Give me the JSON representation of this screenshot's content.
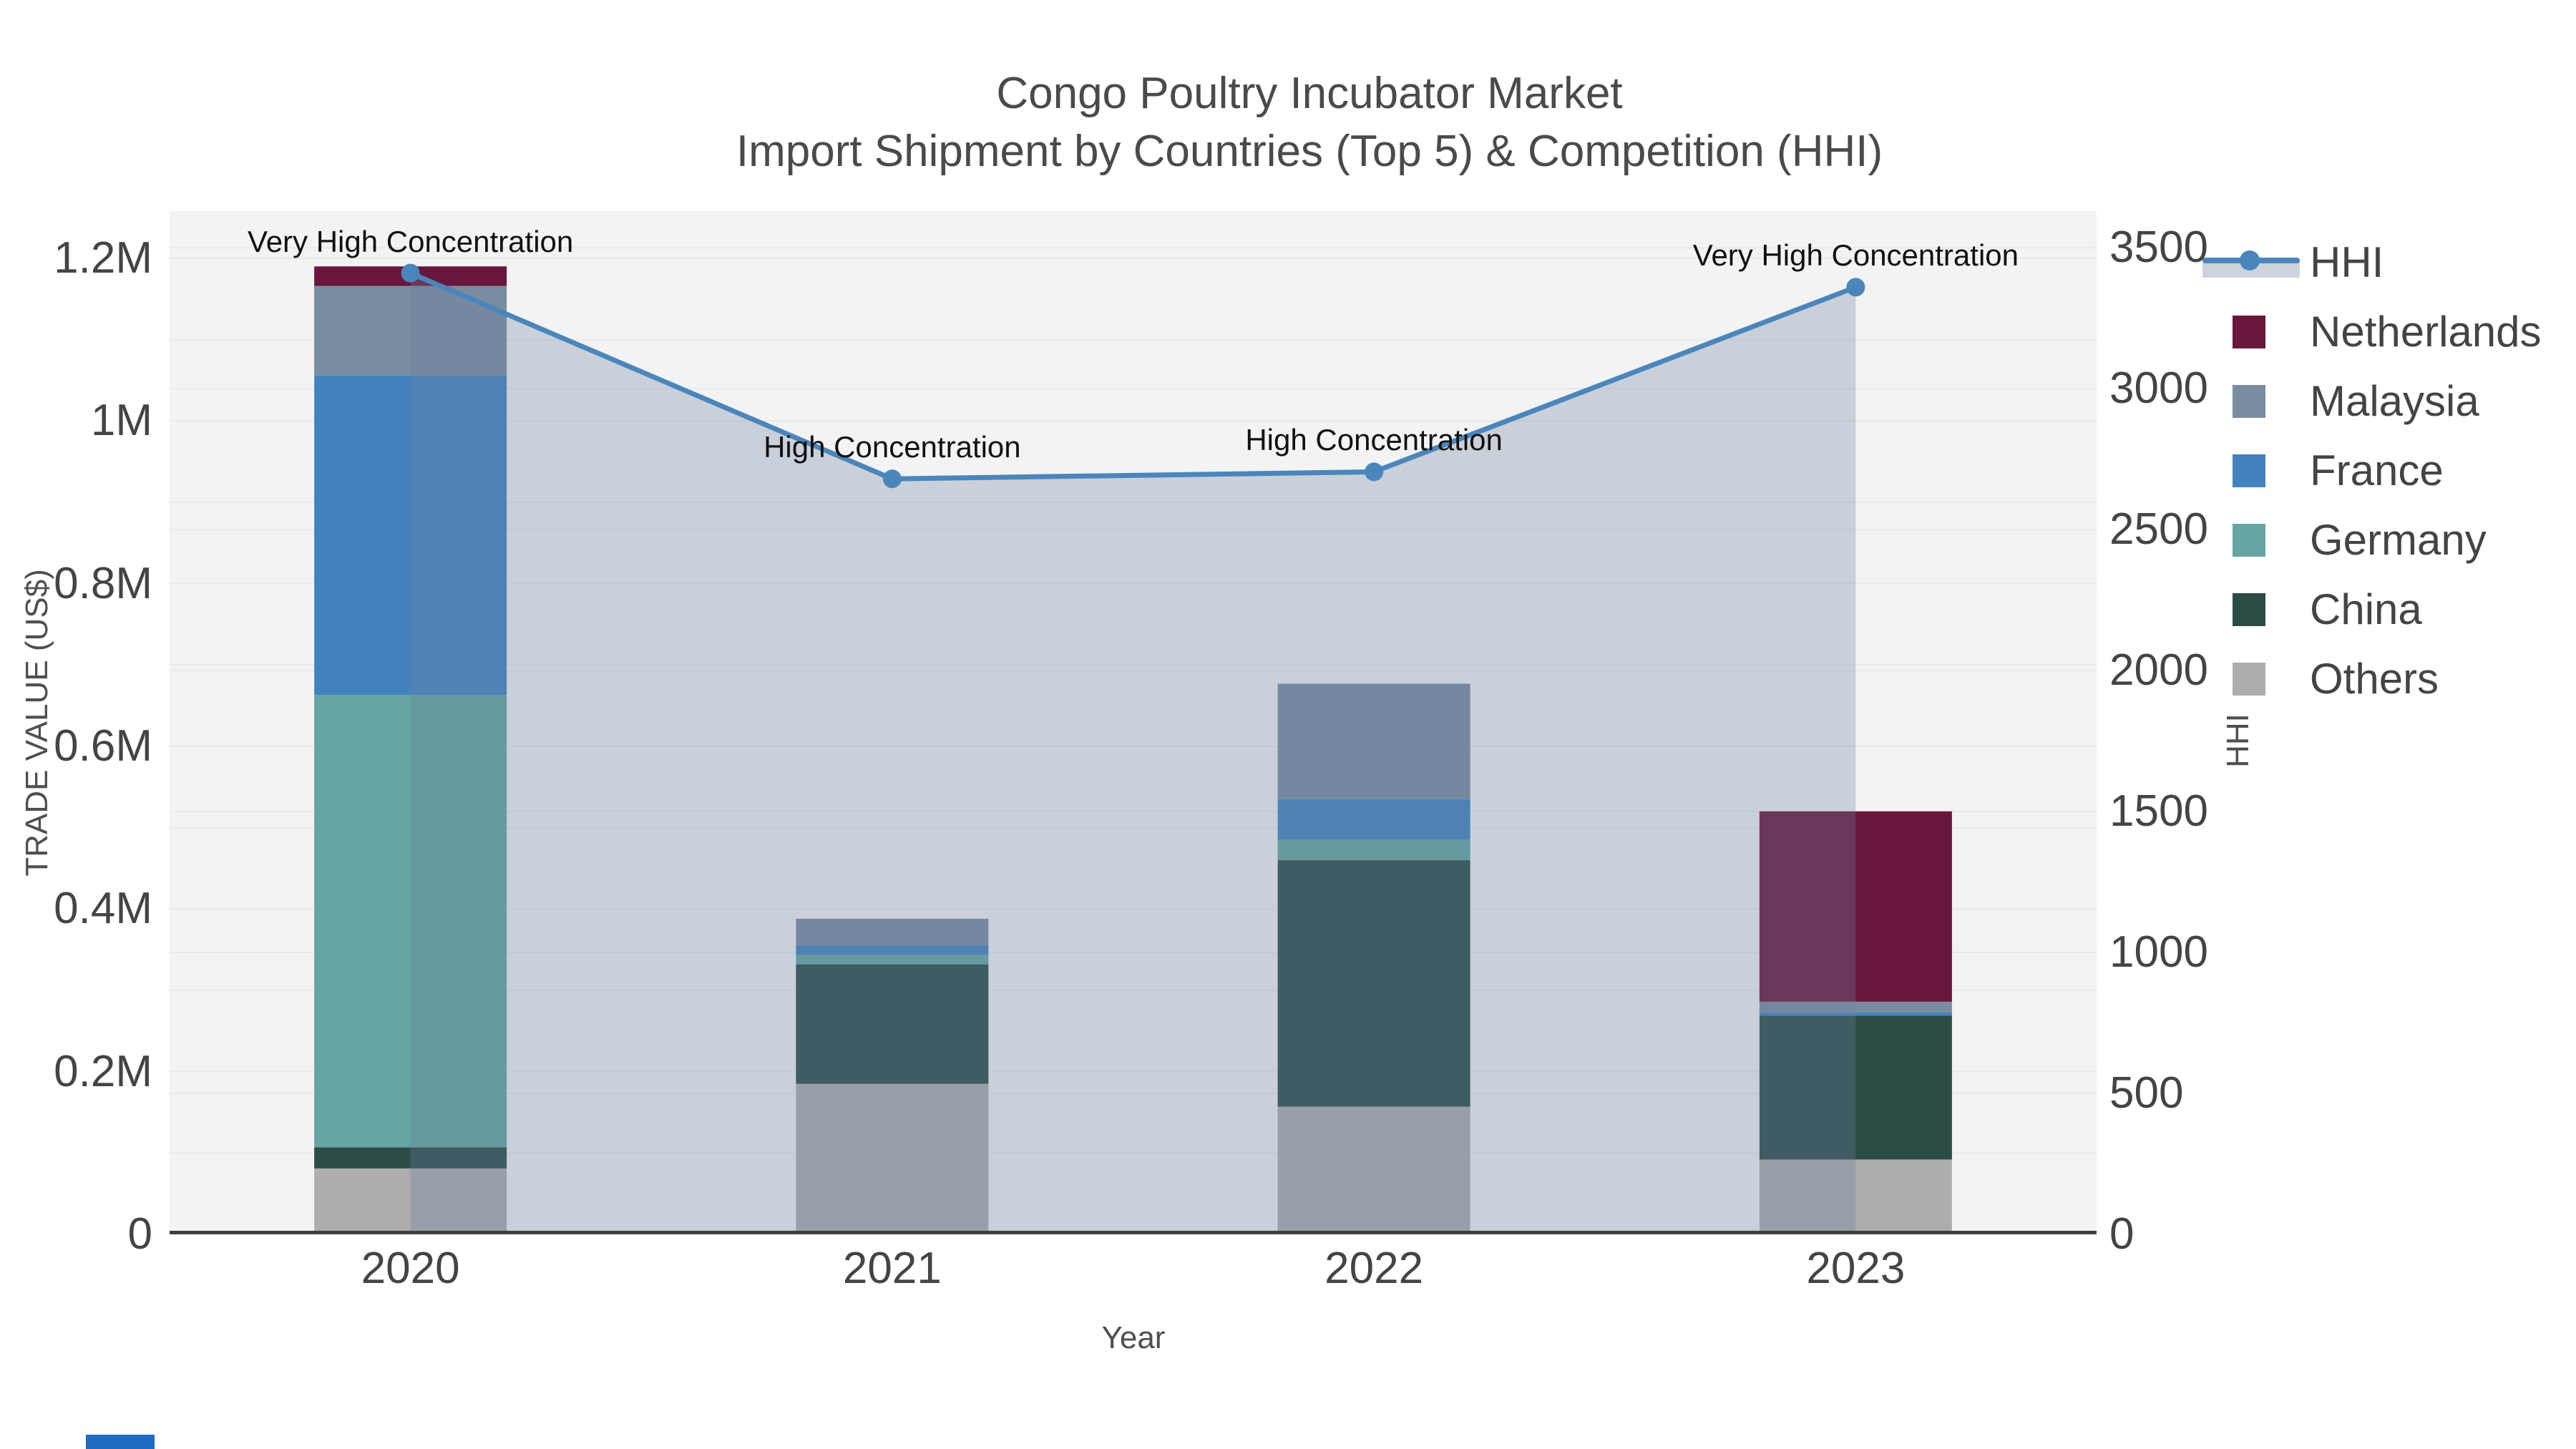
{
  "title": {
    "line1": "Congo Poultry Incubator Market",
    "line2": "Import Shipment by Countries (Top 5) & Competition (HHI)"
  },
  "axes": {
    "x": {
      "title": "Year"
    },
    "y_left": {
      "title": "TRADE VALUE (US$)",
      "tick_labels": [
        "0",
        "0.2M",
        "0.4M",
        "0.6M",
        "0.8M",
        "1M",
        "1.2M"
      ],
      "tick_values": [
        0,
        200000,
        400000,
        600000,
        800000,
        1000000,
        1200000
      ]
    },
    "y_right": {
      "title": "HHI",
      "tick_labels": [
        "0",
        "500",
        "1000",
        "1500",
        "2000",
        "2500",
        "3000",
        "3500"
      ],
      "tick_values": [
        0,
        500,
        1000,
        1500,
        2000,
        2500,
        3000,
        3500
      ]
    }
  },
  "legend": {
    "items": [
      {
        "label": "HHI",
        "type": "line",
        "color": "#4A86BB"
      },
      {
        "label": "Netherlands",
        "type": "swatch",
        "color": "#69173C"
      },
      {
        "label": "Malaysia",
        "type": "swatch",
        "color": "#7A8CA0"
      },
      {
        "label": "France",
        "type": "swatch",
        "color": "#4383BD"
      },
      {
        "label": "Germany",
        "type": "swatch",
        "color": "#65A5A3"
      },
      {
        "label": "China",
        "type": "swatch",
        "color": "#2B4C47"
      },
      {
        "label": "Others",
        "type": "swatch",
        "color": "#ADADAD"
      }
    ]
  },
  "chart_data": {
    "type": "combo_stacked_bar_line_area",
    "categories": [
      "2020",
      "2021",
      "2022",
      "2023"
    ],
    "bar_series_bottom_to_top": [
      {
        "name": "Others",
        "color": "#ADADAD",
        "values": [
          81000,
          185000,
          157000,
          92000
        ]
      },
      {
        "name": "China",
        "color": "#2B4C47",
        "values": [
          26000,
          147000,
          303000,
          177000
        ]
      },
      {
        "name": "Germany",
        "color": "#65A5A3",
        "values": [
          556000,
          12000,
          25000,
          0
        ]
      },
      {
        "name": "France",
        "color": "#4383BD",
        "values": [
          393000,
          11000,
          50000,
          4000
        ]
      },
      {
        "name": "Malaysia",
        "color": "#7A8CA0",
        "values": [
          110000,
          33000,
          142000,
          13000
        ]
      },
      {
        "name": "Netherlands",
        "color": "#69173C",
        "values": [
          24000,
          0,
          0,
          234000
        ]
      }
    ],
    "bar_totals": [
      1190000,
      388000,
      677000,
      520000
    ],
    "line_series": {
      "name": "HHI",
      "color": "#4A86BB",
      "values": [
        3410,
        2680,
        2705,
        3360
      ],
      "area_fill": "rgba(105,128,158,0.30)"
    },
    "annotations": [
      {
        "category": "2020",
        "text": "Very High Concentration"
      },
      {
        "category": "2021",
        "text": "High Concentration"
      },
      {
        "category": "2022",
        "text": "High Concentration"
      },
      {
        "category": "2023",
        "text": "Very High Concentration"
      }
    ],
    "xlabel": "Year",
    "ylabel_left": "TRADE VALUE (US$)",
    "ylabel_right": "HHI",
    "y_left_range": [
      0,
      1258000
    ],
    "y_right_range": [
      0,
      3630
    ],
    "grid": {
      "left_step": 100000,
      "right_step": 500,
      "color": "#e9e9e9"
    },
    "legend_position": "right"
  },
  "colors": {
    "plot_bg": "#f3f3f3",
    "axis_line": "#3f3f3f",
    "text": "#4a4a4a",
    "annotation_text": "#111111",
    "artifact_blue": "#1f6bc4"
  }
}
